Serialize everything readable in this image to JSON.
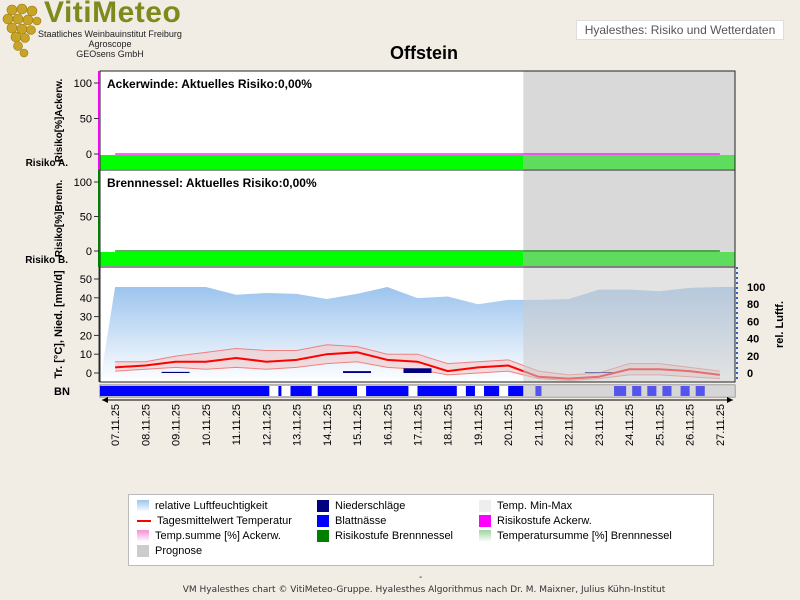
{
  "logo": {
    "brand": "VitiMeteo",
    "line1": "Staatliches Weinbauinstitut Freiburg",
    "line2": "Agroscope",
    "line3": "GEOsens GmbH"
  },
  "header": {
    "app_label": "Hyalesthes: Risiko und Wetterdaten"
  },
  "title": "Offstein",
  "colors": {
    "risk_green": "#00ff00",
    "prognosis_gray": "#cccccc",
    "humidity_blue": "#9cc4ee",
    "temp_red": "#ff0000",
    "precip_navy": "#000080",
    "leaf_wet_blue": "#0000ff",
    "ackerw_magenta": "#ff00ff",
    "brenn_green": "#008000"
  },
  "chart_data": [
    {
      "type": "area",
      "title": "Ackerwinde: Aktuelles Risiko:0,00%",
      "ylabel": "Risiko[%]Ackerw.",
      "yticks": [
        "100",
        "50",
        "0"
      ],
      "ylim": [
        0,
        100
      ],
      "risk_label": "Risiko A.",
      "current_risk": "0,00%",
      "values": [
        0,
        0,
        0,
        0,
        0,
        0,
        0,
        0,
        0,
        0,
        0,
        0,
        0,
        0,
        0,
        0,
        0,
        0,
        0,
        0,
        0
      ]
    },
    {
      "type": "area",
      "title": "Brennnessel: Aktuelles Risiko:0,00%",
      "ylabel": "Risiko[%]Brenn.",
      "yticks": [
        "100",
        "50",
        "0"
      ],
      "ylim": [
        0,
        100
      ],
      "risk_label": "Risiko B.",
      "current_risk": "0,00%",
      "values": [
        0,
        0,
        0,
        0,
        0,
        0,
        0,
        0,
        0,
        0,
        0,
        0,
        0,
        0,
        0,
        0,
        0,
        0,
        0,
        0,
        0
      ]
    },
    {
      "type": "line",
      "ylabel_left": "Tr. [°C], Nied. [mm/d]",
      "ylabel_right": "rel. Luftf.",
      "yticks_left": [
        "50",
        "40",
        "30",
        "20",
        "10",
        "0"
      ],
      "yticks_right": [
        "100",
        "80",
        "60",
        "40",
        "20",
        "0"
      ],
      "ylim_left": [
        0,
        50
      ],
      "ylim_right": [
        0,
        100
      ],
      "bn_label": "BN",
      "x": [
        "07.11.25",
        "08.11.25",
        "09.11.25",
        "10.11.25",
        "11.11.25",
        "12.11.25",
        "13.11.25",
        "14.11.25",
        "15.11.25",
        "16.11.25",
        "17.11.25",
        "18.11.25",
        "19.11.25",
        "20.11.25",
        "21.11.25",
        "22.11.25",
        "23.11.25",
        "24.11.25",
        "25.11.25",
        "26.11.25",
        "27.11.25"
      ],
      "prognosis_from": "21.11.25",
      "series": [
        {
          "name": "relative Luftfeuchtigkeit",
          "axis": "right",
          "values": [
            100,
            100,
            100,
            100,
            91,
            93,
            92,
            86,
            92,
            100,
            87,
            89,
            80,
            85,
            85,
            86,
            97,
            97,
            95,
            99,
            100
          ]
        },
        {
          "name": "Tagesmittelwert Temperatur",
          "axis": "left",
          "values": [
            3,
            4,
            6,
            6,
            8,
            6,
            7,
            10,
            11,
            7,
            6,
            1,
            3,
            4,
            -2,
            -3,
            -2,
            2,
            2,
            1,
            -1
          ]
        },
        {
          "name": "Temp. Min-Max (min)",
          "axis": "left",
          "values": [
            1,
            2,
            3,
            2,
            3,
            2,
            3,
            5,
            6,
            3,
            2,
            -1,
            0,
            1,
            -3,
            -4,
            -3,
            -1,
            -1,
            -2,
            -3
          ]
        },
        {
          "name": "Temp. Min-Max (max)",
          "axis": "left",
          "values": [
            6,
            6,
            9,
            11,
            13,
            12,
            12,
            15,
            14,
            10,
            10,
            5,
            6,
            7,
            1,
            -1,
            0,
            5,
            5,
            3,
            1
          ]
        },
        {
          "name": "Niederschläge",
          "axis": "left",
          "values": [
            0,
            0,
            0.6,
            0,
            0,
            0,
            0,
            0,
            1,
            0,
            2.5,
            0,
            0,
            0,
            0,
            0,
            0.5,
            0,
            0,
            0,
            0
          ]
        }
      ],
      "leaf_wetness": [
        [
          0,
          5.6
        ],
        [
          5.9,
          6.0
        ],
        [
          6.3,
          7.0
        ],
        [
          7.2,
          8.5
        ],
        [
          8.8,
          10.2
        ],
        [
          10.5,
          11.8
        ],
        [
          12.1,
          12.4
        ],
        [
          12.7,
          13.2
        ],
        [
          13.5,
          14.0
        ]
      ],
      "leaf_wetness_prognosis": [
        [
          14.4,
          14.6
        ],
        [
          17.0,
          17.4
        ],
        [
          17.6,
          17.9
        ],
        [
          18.1,
          18.4
        ],
        [
          18.6,
          18.9
        ],
        [
          19.2,
          19.5
        ],
        [
          19.7,
          20.0
        ]
      ]
    }
  ],
  "legend": [
    {
      "label": "relative Luftfeuchtigkeit",
      "style": "gradient",
      "color": "#9cc4ee"
    },
    {
      "label": "Niederschläge",
      "style": "box",
      "color": "#000080"
    },
    {
      "label": "Temp. Min-Max",
      "style": "box",
      "color": "#eeeeee"
    },
    {
      "label": "Tagesmittelwert Temperatur",
      "style": "line",
      "color": "#ff0000"
    },
    {
      "label": "Blattnässe",
      "style": "box",
      "color": "#0000ff"
    },
    {
      "label": "Risikostufe Ackerw.",
      "style": "box",
      "color": "#ff00ff"
    },
    {
      "label": "Temp.summe [%] Ackerw.",
      "style": "gradient",
      "color": "#f590d8"
    },
    {
      "label": "Risikostufe Brennnessel",
      "style": "box",
      "color": "#008000"
    },
    {
      "label": "Temperatursumme [%] Brennnessel",
      "style": "gradient",
      "color": "#9ed49e"
    },
    {
      "label": "Prognose",
      "style": "box",
      "color": "#cccccc"
    }
  ],
  "dash_mark": "-",
  "footer": "VM Hyalesthes chart © VitiMeteo-Gruppe. Hyalesthes Algorithmus nach Dr. M. Maixner, Julius Kühn-Institut"
}
